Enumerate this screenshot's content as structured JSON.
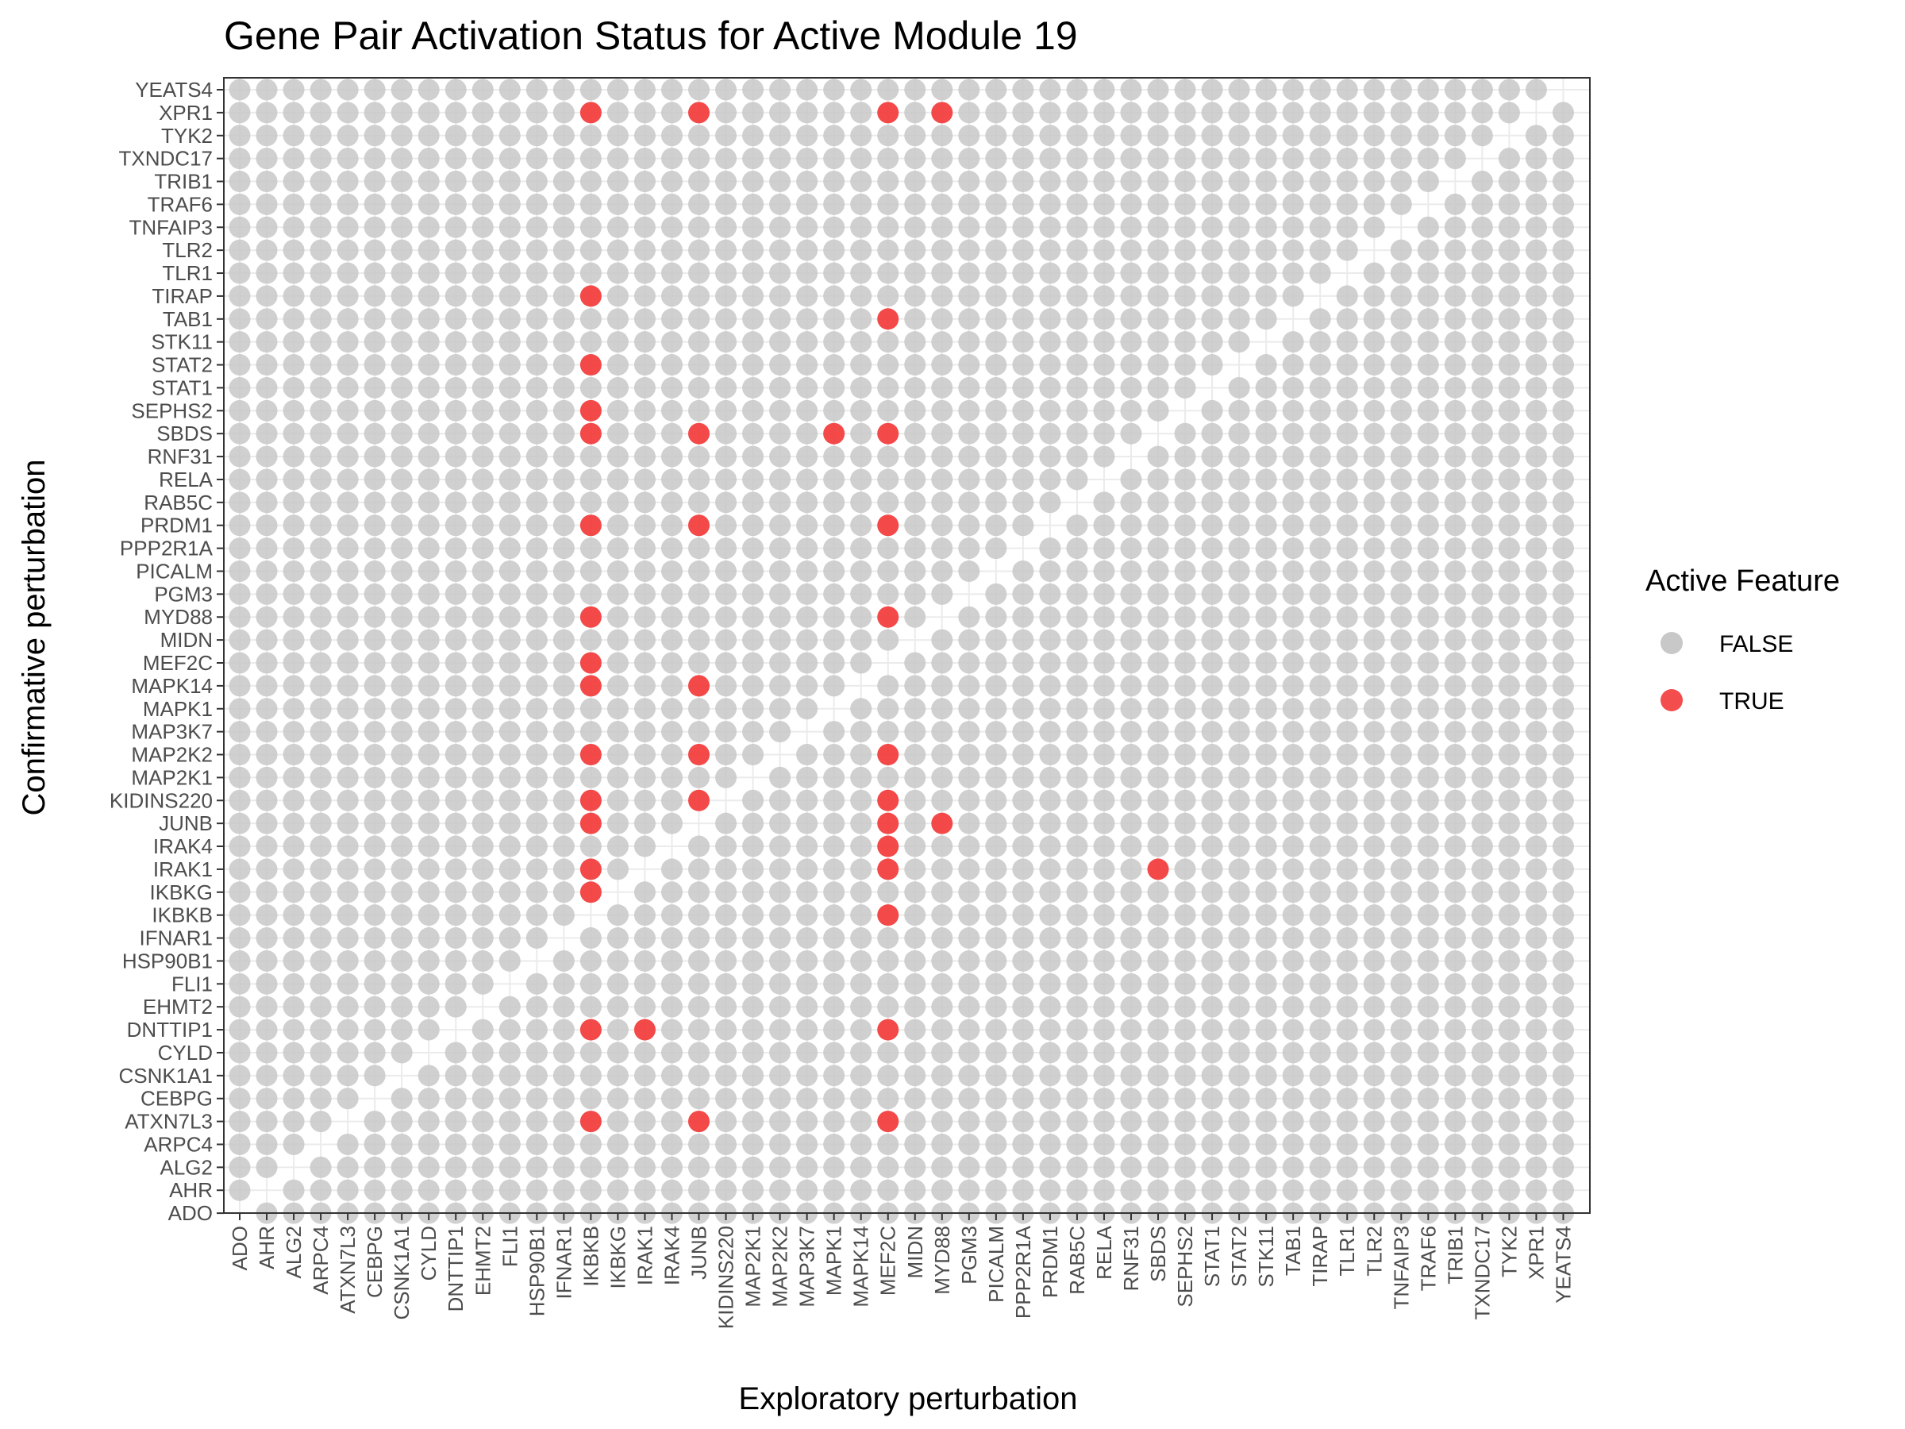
{
  "chart_data": {
    "type": "scatter",
    "title": "Gene Pair Activation Status for Active Module 19",
    "xlabel": "Exploratory perturbation",
    "ylabel": "Confirmative perturbation",
    "categories": [
      "ADO",
      "AHR",
      "ALG2",
      "ARPC4",
      "ATXN7L3",
      "CEBPG",
      "CSNK1A1",
      "CYLD",
      "DNTTIP1",
      "EHMT2",
      "FLI1",
      "HSP90B1",
      "IFNAR1",
      "IKBKB",
      "IKBKG",
      "IRAK1",
      "IRAK4",
      "JUNB",
      "KIDINS220",
      "MAP2K1",
      "MAP2K2",
      "MAP3K7",
      "MAPK1",
      "MAPK14",
      "MEF2C",
      "MIDN",
      "MYD88",
      "PGM3",
      "PICALM",
      "PPP2R1A",
      "PRDM1",
      "RAB5C",
      "RELA",
      "RNF31",
      "SBDS",
      "SEPHS2",
      "STAT1",
      "STAT2",
      "STK11",
      "TAB1",
      "TIRAP",
      "TLR1",
      "TLR2",
      "TNFAIP3",
      "TRAF6",
      "TRIB1",
      "TXNDC17",
      "TYK2",
      "XPR1",
      "YEATS4"
    ],
    "diagonal_omitted": true,
    "active_pairs": [
      {
        "x": "IKBKB",
        "y": "XPR1"
      },
      {
        "x": "JUNB",
        "y": "XPR1"
      },
      {
        "x": "MEF2C",
        "y": "XPR1"
      },
      {
        "x": "MYD88",
        "y": "XPR1"
      },
      {
        "x": "IKBKB",
        "y": "TIRAP"
      },
      {
        "x": "MEF2C",
        "y": "TAB1"
      },
      {
        "x": "IKBKB",
        "y": "STAT2"
      },
      {
        "x": "IKBKB",
        "y": "SEPHS2"
      },
      {
        "x": "IKBKB",
        "y": "SBDS"
      },
      {
        "x": "JUNB",
        "y": "SBDS"
      },
      {
        "x": "MAPK1",
        "y": "SBDS"
      },
      {
        "x": "MEF2C",
        "y": "SBDS"
      },
      {
        "x": "IKBKB",
        "y": "PRDM1"
      },
      {
        "x": "JUNB",
        "y": "PRDM1"
      },
      {
        "x": "MEF2C",
        "y": "PRDM1"
      },
      {
        "x": "IKBKB",
        "y": "MYD88"
      },
      {
        "x": "MEF2C",
        "y": "MYD88"
      },
      {
        "x": "IKBKB",
        "y": "MEF2C"
      },
      {
        "x": "IKBKB",
        "y": "MAPK14"
      },
      {
        "x": "JUNB",
        "y": "MAPK14"
      },
      {
        "x": "IKBKB",
        "y": "MAP2K2"
      },
      {
        "x": "JUNB",
        "y": "MAP2K2"
      },
      {
        "x": "MEF2C",
        "y": "MAP2K2"
      },
      {
        "x": "IKBKB",
        "y": "KIDINS220"
      },
      {
        "x": "JUNB",
        "y": "KIDINS220"
      },
      {
        "x": "MEF2C",
        "y": "KIDINS220"
      },
      {
        "x": "IKBKB",
        "y": "JUNB"
      },
      {
        "x": "MEF2C",
        "y": "JUNB"
      },
      {
        "x": "MYD88",
        "y": "JUNB"
      },
      {
        "x": "MEF2C",
        "y": "IRAK4"
      },
      {
        "x": "IKBKB",
        "y": "IRAK1"
      },
      {
        "x": "MEF2C",
        "y": "IRAK1"
      },
      {
        "x": "SBDS",
        "y": "IRAK1"
      },
      {
        "x": "IKBKB",
        "y": "IKBKG"
      },
      {
        "x": "MEF2C",
        "y": "IKBKB"
      },
      {
        "x": "IKBKB",
        "y": "DNTTIP1"
      },
      {
        "x": "IRAK1",
        "y": "DNTTIP1"
      },
      {
        "x": "MEF2C",
        "y": "DNTTIP1"
      },
      {
        "x": "IKBKB",
        "y": "ATXN7L3"
      },
      {
        "x": "JUNB",
        "y": "ATXN7L3"
      },
      {
        "x": "MEF2C",
        "y": "ATXN7L3"
      }
    ],
    "legend": {
      "title": "Active Feature",
      "position": "right",
      "entries": [
        {
          "label": "FALSE",
          "color": "#c8c8c8"
        },
        {
          "label": "TRUE",
          "color": "#f23a3a"
        }
      ]
    },
    "grid": true,
    "panel_border": true
  }
}
